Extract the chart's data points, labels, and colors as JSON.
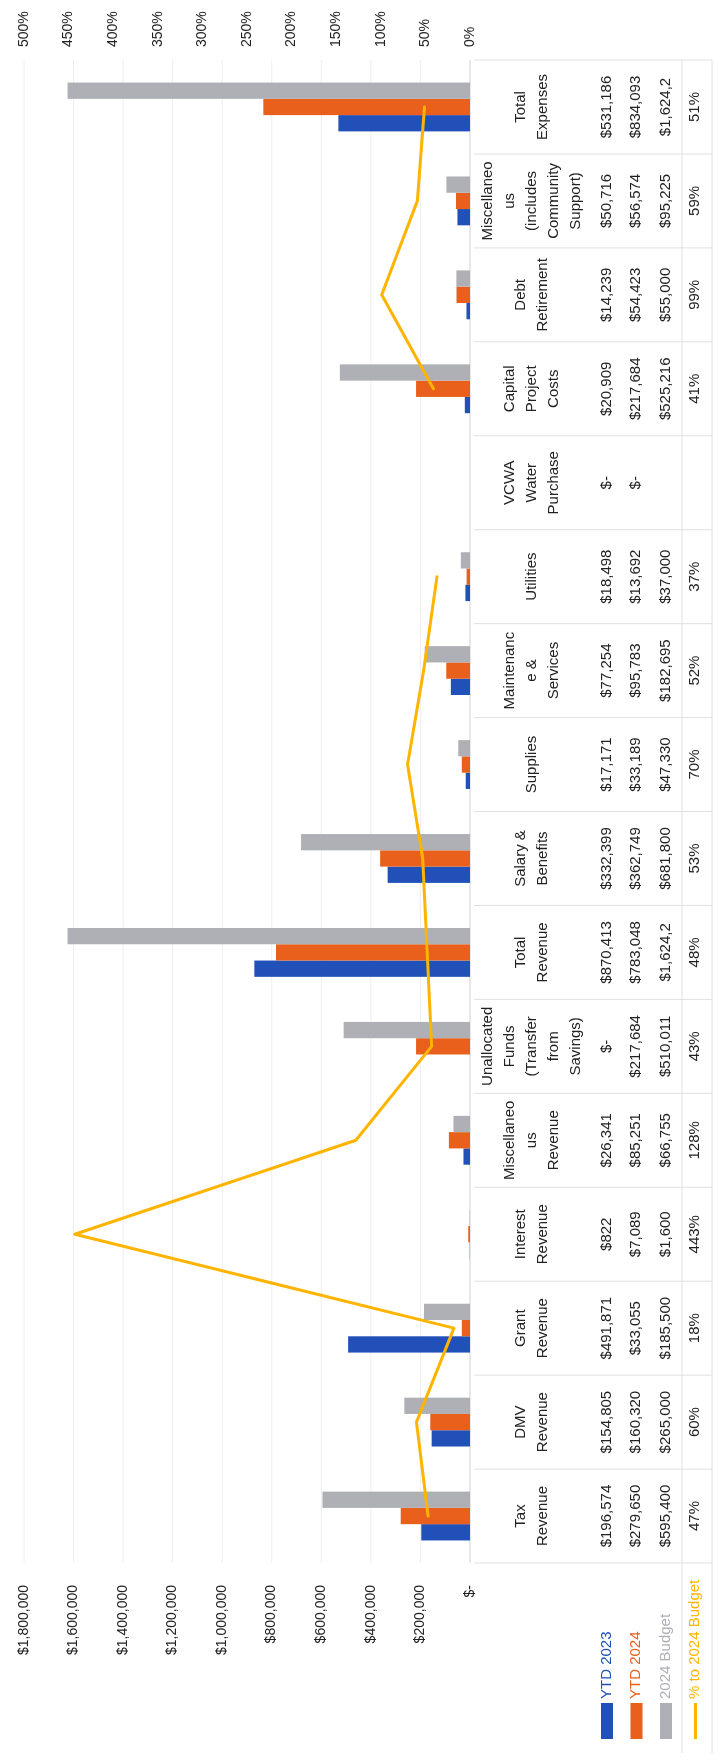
{
  "chart_data": {
    "type": "bar",
    "orientation": "horizontal",
    "categories": [
      "Total Expenses",
      "Miscellaneous (includes Community Support)",
      "Debt Retirement",
      "Capital Project Costs",
      "VCWA Water Purchase",
      "Utilities",
      "Maintenance & Services",
      "Supplies",
      "Salary & Benefits",
      "Total Revenue",
      "Unallocated Funds (Transfer from Savings)",
      "Miscellaneous Revenue",
      "Interest Revenue",
      "Grant Revenue",
      "DMV Revenue",
      "Tax Revenue"
    ],
    "series": [
      {
        "name": "YTD 2023",
        "color": "#2150b8",
        "values": [
          531186,
          50716,
          14239,
          20909,
          0,
          18498,
          77254,
          17171,
          332399,
          870413,
          0,
          26341,
          822,
          491871,
          154805,
          196574
        ],
        "value_labels": [
          "$531,186",
          "$50,716",
          "$14,239",
          "$20,909",
          "$-",
          "$18,498",
          "$77,254",
          "$17,171",
          "$332,399",
          "$870,413",
          "$-",
          "$26,341",
          "$822",
          "$491,871",
          "$154,805",
          "$196,574"
        ]
      },
      {
        "name": "YTD 2024",
        "color": "#e8601c",
        "values": [
          834093,
          56574,
          54423,
          217684,
          0,
          13692,
          95783,
          33189,
          362749,
          783048,
          217684,
          85251,
          7089,
          33055,
          160320,
          279650
        ],
        "value_labels": [
          "$834,093",
          "$56,574",
          "$54,423",
          "$217,684",
          "$-",
          "$13,692",
          "$95,783",
          "$33,189",
          "$362,749",
          "$783,048",
          "$217,684",
          "$85,251",
          "$7,089",
          "$33,055",
          "$160,320",
          "$279,650"
        ]
      },
      {
        "name": "2024 Budget",
        "color": "#aeb0b5",
        "values": [
          1624200,
          95225,
          55000,
          525216,
          null,
          37000,
          182695,
          47330,
          681800,
          1624200,
          510011,
          66755,
          1600,
          185500,
          265000,
          595400
        ],
        "value_labels": [
          "$1,624,2",
          "$95,225",
          "$55,000",
          "$525,216",
          null,
          "$37,000",
          "$182,695",
          "$47,330",
          "$681,800",
          "$1,624,2",
          "$510,011",
          "$66,755",
          "$1,600",
          "$185,500",
          "$265,000",
          "$595,400"
        ]
      },
      {
        "name": "% to 2024 Budget",
        "type": "line",
        "axis": "x2",
        "color": "#ffb400",
        "values": [
          51,
          59,
          99,
          41,
          null,
          37,
          52,
          70,
          53,
          48,
          43,
          128,
          443,
          18,
          60,
          47
        ],
        "value_labels": [
          "51%",
          "59%",
          "99%",
          "41%",
          null,
          "37%",
          "52%",
          "70%",
          "53%",
          "48%",
          "43%",
          "128%",
          "443%",
          "18%",
          "60%",
          "47%"
        ]
      }
    ],
    "xlim": [
      1800000,
      0
    ],
    "xticks": [
      {
        "value": 0,
        "label": "$-"
      },
      {
        "value": 200000,
        "label": "$200,000"
      },
      {
        "value": 400000,
        "label": "$400,000"
      },
      {
        "value": 600000,
        "label": "$600,000"
      },
      {
        "value": 800000,
        "label": "$800,000"
      },
      {
        "value": 1000000,
        "label": "$1,000,000"
      },
      {
        "value": 1200000,
        "label": "$1,200,000"
      },
      {
        "value": 1400000,
        "label": "$1,400,000"
      },
      {
        "value": 1600000,
        "label": "$1,600,000"
      },
      {
        "value": 1800000,
        "label": "$1,800,000"
      }
    ],
    "x2lim": [
      500,
      0
    ],
    "x2ticks": [
      {
        "value": 0,
        "label": "0%"
      },
      {
        "value": 50,
        "label": "50%"
      },
      {
        "value": 100,
        "label": "100%"
      },
      {
        "value": 150,
        "label": "150%"
      },
      {
        "value": 200,
        "label": "200%"
      },
      {
        "value": 250,
        "label": "250%"
      },
      {
        "value": 300,
        "label": "300%"
      },
      {
        "value": 350,
        "label": "350%"
      },
      {
        "value": 400,
        "label": "400%"
      },
      {
        "value": 450,
        "label": "450%"
      },
      {
        "value": 500,
        "label": "500%"
      }
    ],
    "grid": "x",
    "legend": "bottom right"
  }
}
